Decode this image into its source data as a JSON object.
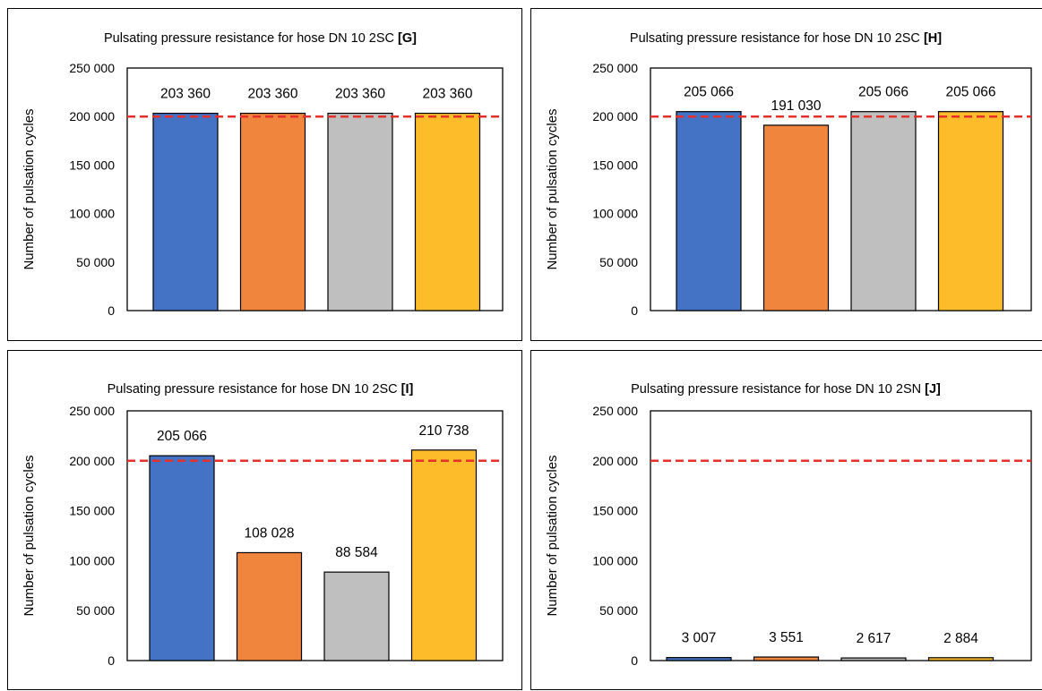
{
  "chart_data": [
    {
      "type": "bar",
      "title": "Pulsating pressure resistance for hose DN 10 2SC",
      "title_tag": "[G]",
      "ylabel": "Number of pulsation cycles",
      "ylim": [
        0,
        250000
      ],
      "yticks": [
        0,
        50000,
        100000,
        150000,
        200000,
        250000
      ],
      "ytick_labels": [
        "0",
        "50 000",
        "100 000",
        "150 000",
        "200 000",
        "250 000"
      ],
      "reference_line": 200000,
      "values": [
        203360,
        203360,
        203360,
        203360
      ],
      "value_labels": [
        "203 360",
        "203 360",
        "203 360",
        "203 360"
      ],
      "colors": [
        "#4472c4",
        "#f0853e",
        "#bfbfbf",
        "#fdbd2b"
      ],
      "reference_color": "#e8302a"
    },
    {
      "type": "bar",
      "title": "Pulsating pressure resistance for hose DN 10 2SC",
      "title_tag": "[H]",
      "ylabel": "Number of pulsation cycles",
      "ylim": [
        0,
        250000
      ],
      "yticks": [
        0,
        50000,
        100000,
        150000,
        200000,
        250000
      ],
      "ytick_labels": [
        "0",
        "50 000",
        "100 000",
        "150 000",
        "200 000",
        "250 000"
      ],
      "reference_line": 200000,
      "values": [
        205066,
        191030,
        205066,
        205066
      ],
      "value_labels": [
        "205 066",
        "191 030",
        "205 066",
        "205 066"
      ],
      "colors": [
        "#4472c4",
        "#f0853e",
        "#bfbfbf",
        "#fdbd2b"
      ],
      "reference_color": "#e8302a"
    },
    {
      "type": "bar",
      "title": "Pulsating pressure resistance for hose DN 10 2SC",
      "title_tag": "[I]",
      "ylabel": "Number of pulsation cycles",
      "ylim": [
        0,
        250000
      ],
      "yticks": [
        0,
        50000,
        100000,
        150000,
        200000,
        250000
      ],
      "ytick_labels": [
        "0",
        "50 000",
        "100 000",
        "150 000",
        "200 000",
        "250 000"
      ],
      "reference_line": 200000,
      "values": [
        205066,
        108028,
        88584,
        210738
      ],
      "value_labels": [
        "205 066",
        "108 028",
        "88 584",
        "210 738"
      ],
      "colors": [
        "#4472c4",
        "#f0853e",
        "#bfbfbf",
        "#fdbd2b"
      ],
      "reference_color": "#e8302a"
    },
    {
      "type": "bar",
      "title": "Pulsating pressure resistance for hose DN 10 2SN",
      "title_tag": "[J]",
      "ylabel": "Number of pulsation cycles",
      "ylim": [
        0,
        250000
      ],
      "yticks": [
        0,
        50000,
        100000,
        150000,
        200000,
        250000
      ],
      "ytick_labels": [
        "0",
        "50 000",
        "100 000",
        "150 000",
        "200 000",
        "250 000"
      ],
      "reference_line": 200000,
      "values": [
        3007,
        3551,
        2617,
        2884
      ],
      "value_labels": [
        "3 007",
        "3 551",
        "2 617",
        "2 884"
      ],
      "colors": [
        "#4472c4",
        "#f0853e",
        "#bfbfbf",
        "#fdbd2b"
      ],
      "reference_color": "#e8302a"
    }
  ]
}
